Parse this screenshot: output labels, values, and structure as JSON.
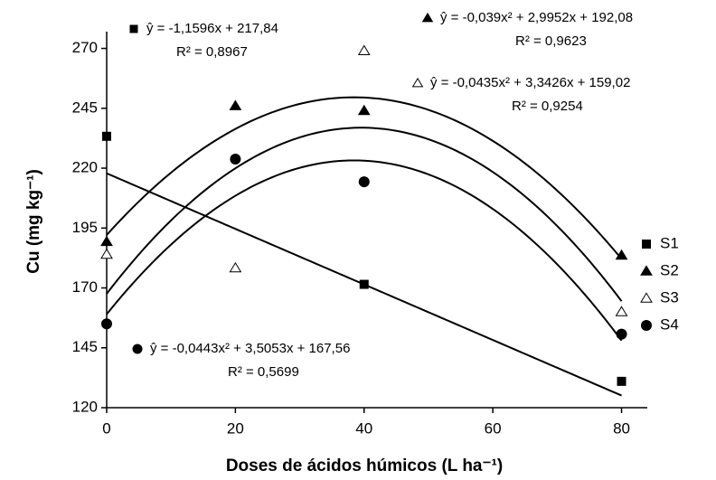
{
  "chart_data": {
    "type": "scatter",
    "xlabel": "Doses de ácidos húmicos (L ha⁻¹)",
    "ylabel": "Cu (mg kg⁻¹)",
    "xlim": [
      0,
      84
    ],
    "ylim": [
      120,
      277
    ],
    "xticks": [
      0,
      20,
      40,
      60,
      80
    ],
    "yticks": [
      120,
      145,
      170,
      195,
      220,
      245,
      270
    ],
    "legend": "right",
    "series": [
      {
        "name": "S1",
        "marker": "square",
        "x": [
          0,
          40,
          80
        ],
        "values": [
          233.3,
          171.5,
          131
        ],
        "fit": [
          0,
          -1.1596,
          217.84
        ],
        "equation": "ŷ = -1,1596x + 217,84",
        "r2": "R² = 0,8967"
      },
      {
        "name": "S2",
        "marker": "triangle",
        "x": [
          0,
          20,
          40,
          80
        ],
        "values": [
          189.3,
          246,
          244,
          183.6
        ],
        "fit": [
          -0.039,
          2.9952,
          192.08
        ],
        "equation": "ŷ = -0,039x² + 2,9952x + 192,08",
        "r2": "R² = 0,9623"
      },
      {
        "name": "S3",
        "marker": "open-triangle",
        "x": [
          0,
          20,
          40,
          80
        ],
        "values": [
          184,
          178.3,
          269,
          160
        ],
        "fit": [
          -0.0435,
          3.3426,
          159.02
        ],
        "equation": "ŷ = -0,0435x² + 3,3426x + 159,02",
        "r2": "R² = 0,9254"
      },
      {
        "name": "S4",
        "marker": "circle",
        "x": [
          0,
          20,
          40,
          80
        ],
        "values": [
          155,
          223.8,
          214.3,
          150.7
        ],
        "fit": [
          -0.0443,
          3.5053,
          167.56
        ],
        "equation": "ŷ = -0,0443x² + 3,5053x + 167,56",
        "r2": "R² = 0,5699"
      }
    ]
  }
}
